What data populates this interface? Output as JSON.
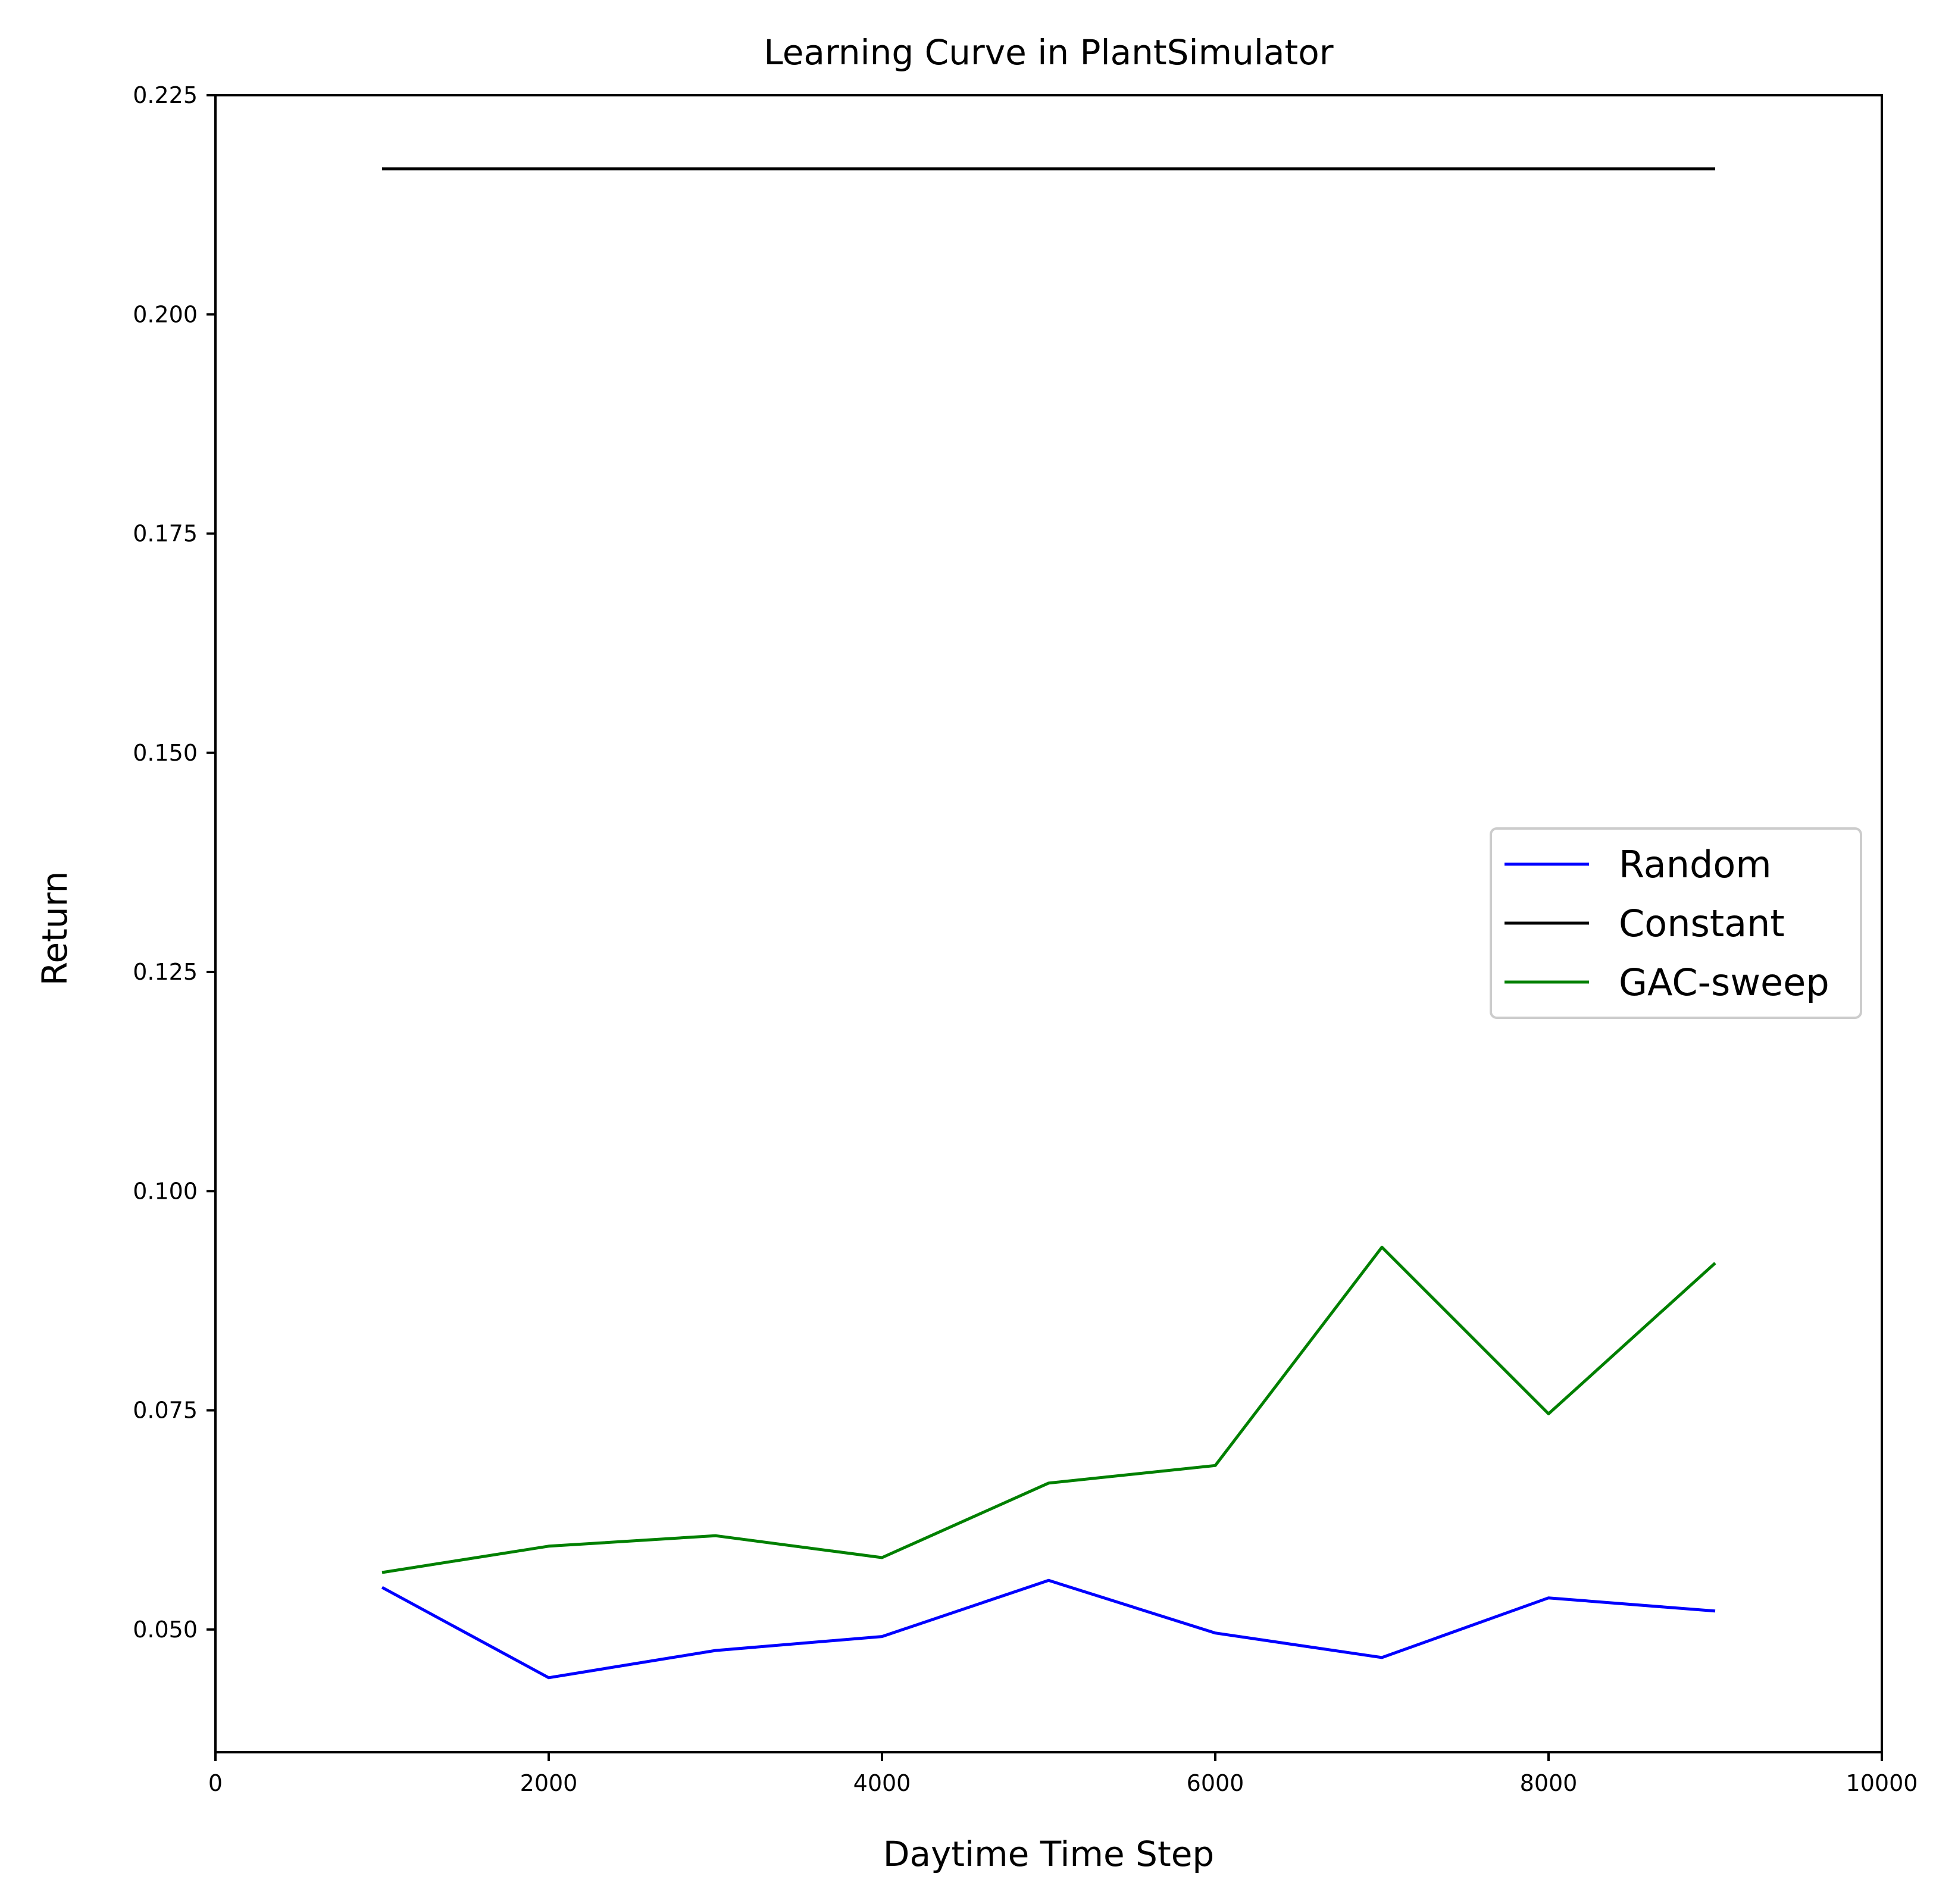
{
  "chart_data": {
    "type": "line",
    "title": "Learning Curve in PlantSimulator",
    "xlabel": "Daytime Time Step",
    "ylabel": "Return",
    "xlim": [
      0,
      10000
    ],
    "ylim": [
      0.036,
      0.225
    ],
    "xticks": [
      0,
      2000,
      4000,
      6000,
      8000,
      10000
    ],
    "xtick_labels": [
      "0",
      "2000",
      "4000",
      "6000",
      "8000",
      "10000"
    ],
    "yticks": [
      0.05,
      0.075,
      0.1,
      0.125,
      0.15,
      0.175,
      0.2,
      0.225
    ],
    "ytick_labels": [
      "0.050",
      "0.075",
      "0.100",
      "0.125",
      "0.150",
      "0.175",
      "0.200",
      "0.225"
    ],
    "grid": false,
    "legend_position": "center-right",
    "series": [
      {
        "name": "Random",
        "color": "#0000ff",
        "x": [
          1000,
          2000,
          3000,
          4000,
          5000,
          6000,
          7000,
          8000,
          9000
        ],
        "y": [
          0.0548,
          0.0445,
          0.0476,
          0.0492,
          0.0556,
          0.0496,
          0.0468,
          0.0536,
          0.0521
        ]
      },
      {
        "name": "Constant",
        "color": "#000000",
        "x": [
          1000,
          9000
        ],
        "y": [
          0.2166,
          0.2166
        ]
      },
      {
        "name": "GAC-sweep",
        "color": "#008000",
        "x": [
          1000,
          2000,
          3000,
          4000,
          5000,
          6000,
          7000,
          8000,
          9000
        ],
        "y": [
          0.0565,
          0.0595,
          0.0607,
          0.0582,
          0.0667,
          0.0687,
          0.0936,
          0.0746,
          0.0918
        ]
      }
    ]
  }
}
